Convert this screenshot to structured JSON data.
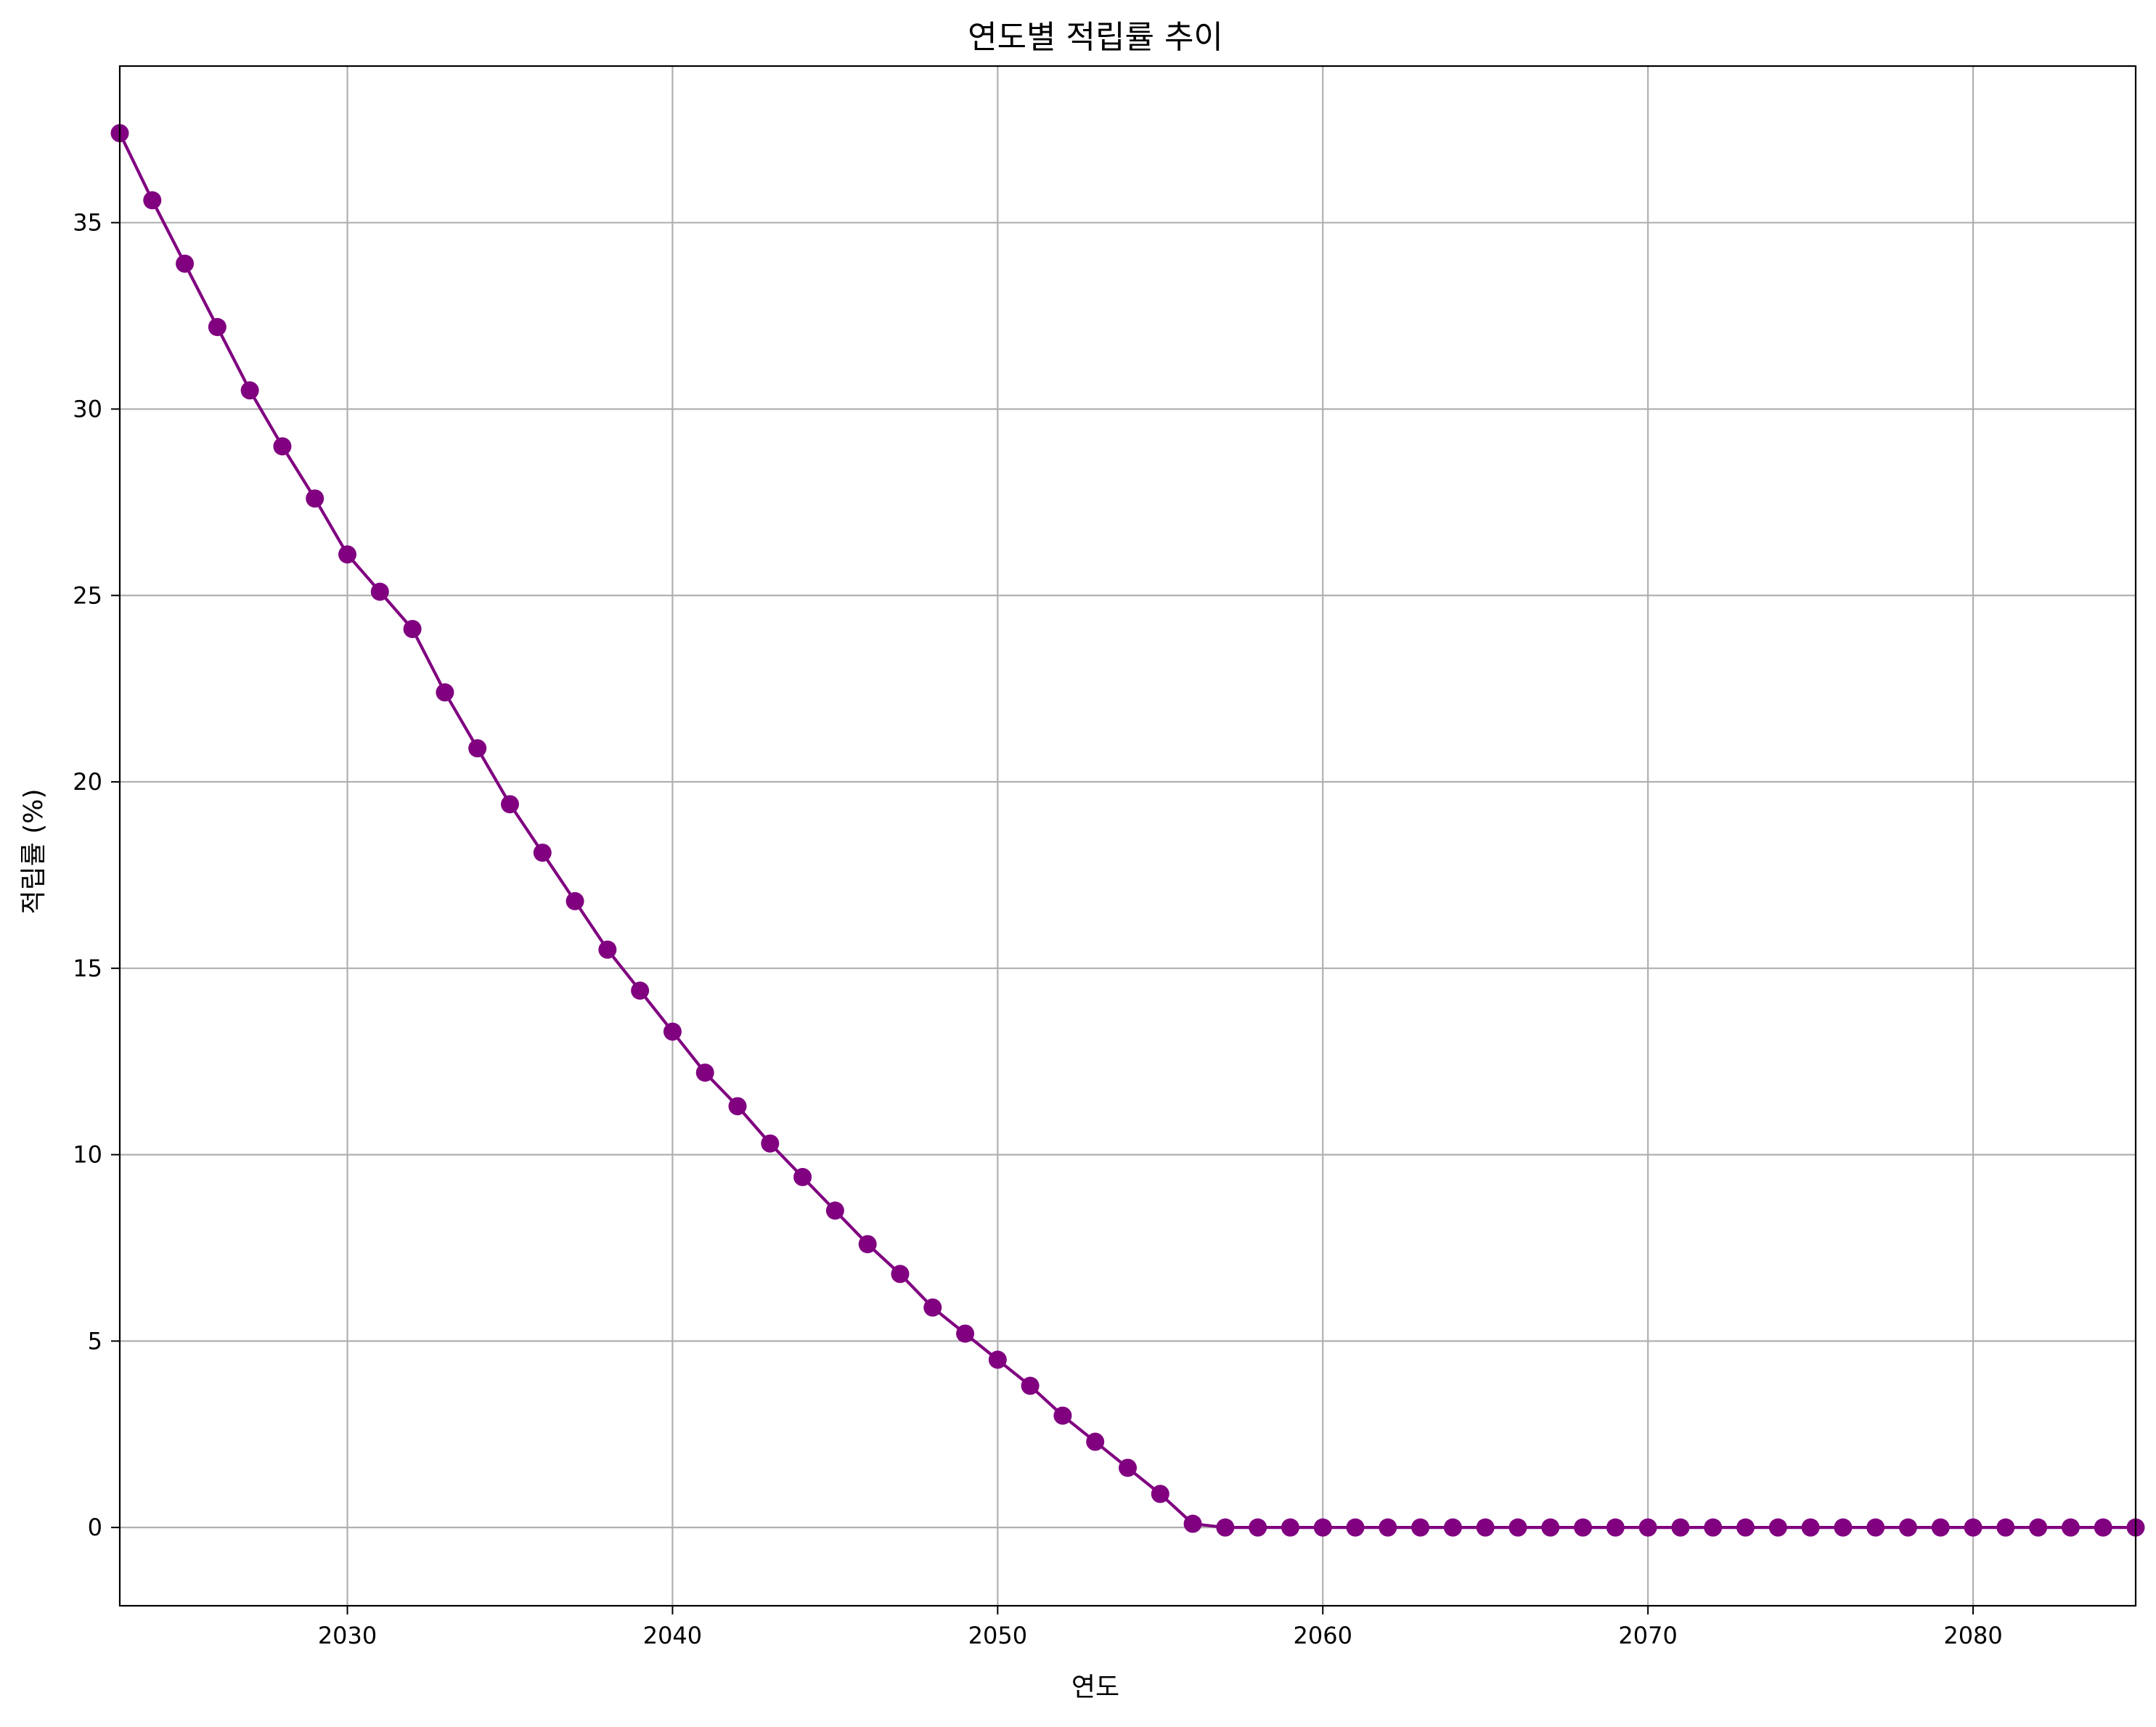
{
  "chart_data": {
    "type": "line",
    "title": "연도별 적립률 추이",
    "xlabel": "연도",
    "ylabel": "적립률 (%)",
    "xlim": [
      2023,
      2085
    ],
    "ylim": [
      -2.1,
      39.2
    ],
    "x_ticks": [
      2030,
      2040,
      2050,
      2060,
      2070,
      2080
    ],
    "y_ticks": [
      0,
      5,
      10,
      15,
      20,
      25,
      30,
      35
    ],
    "x_tick_labels": [
      "2030",
      "2040",
      "2050",
      "2060",
      "2070",
      "2080"
    ],
    "y_tick_labels": [
      "0",
      "5",
      "10",
      "15",
      "20",
      "25",
      "30",
      "35"
    ],
    "grid": true,
    "series": [
      {
        "color": "#800080",
        "marker": "circle",
        "x": [
          2023,
          2024,
          2025,
          2026,
          2027,
          2028,
          2029,
          2030,
          2031,
          2032,
          2033,
          2034,
          2035,
          2036,
          2037,
          2038,
          2039,
          2040,
          2041,
          2042,
          2043,
          2044,
          2045,
          2046,
          2047,
          2048,
          2049,
          2050,
          2051,
          2052,
          2053,
          2054,
          2055,
          2056,
          2057,
          2058,
          2059,
          2060,
          2061,
          2062,
          2063,
          2064,
          2065,
          2066,
          2067,
          2068,
          2069,
          2070,
          2071,
          2072,
          2073,
          2074,
          2075,
          2076,
          2077,
          2078,
          2079,
          2080,
          2081,
          2082,
          2083,
          2084,
          2085
        ],
        "y": [
          37.4,
          35.6,
          33.9,
          32.2,
          30.5,
          29.0,
          27.6,
          26.1,
          25.1,
          24.1,
          22.4,
          20.9,
          19.4,
          18.1,
          16.8,
          15.5,
          14.4,
          13.3,
          12.2,
          11.3,
          10.3,
          9.4,
          8.5,
          7.6,
          6.8,
          5.9,
          5.2,
          4.5,
          3.8,
          3.0,
          2.3,
          1.6,
          0.9,
          0.1,
          0,
          0,
          0,
          0,
          0,
          0,
          0,
          0,
          0,
          0,
          0,
          0,
          0,
          0,
          0,
          0,
          0,
          0,
          0,
          0,
          0,
          0,
          0,
          0,
          0,
          0,
          0,
          0,
          0
        ]
      }
    ]
  },
  "style": {
    "line_color": "#800080",
    "grid_color": "#b0b0b0",
    "axis_color": "#000000"
  }
}
